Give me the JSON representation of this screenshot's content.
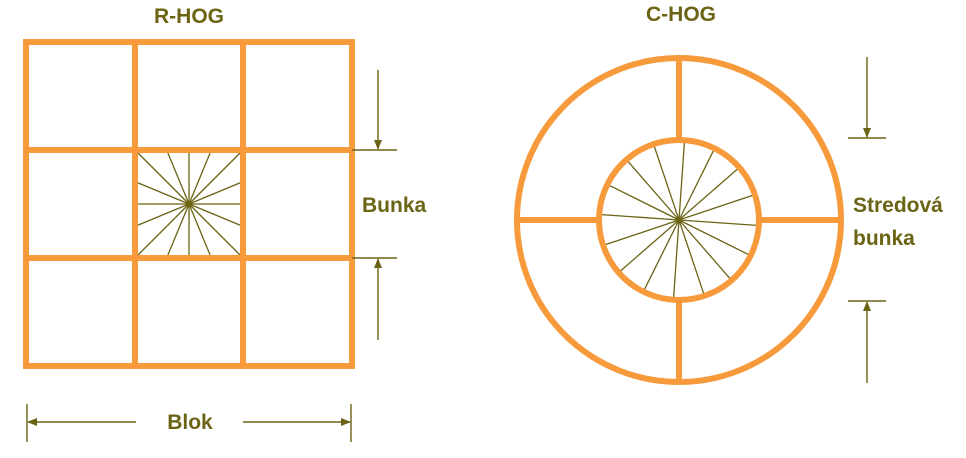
{
  "rhog": {
    "title": "R-HOG",
    "cell_label": "Bunka",
    "block_label": "Blok"
  },
  "chog": {
    "title": "C-HOG",
    "cell_label_line1": "Stredová",
    "cell_label_line2": "bunka"
  },
  "colors": {
    "grid": "#F79A3C",
    "annotation": "#6B6414",
    "rays": "#6B6414",
    "background": "#FFFFFF"
  },
  "rhog_grid": {
    "rows": 3,
    "cols": 3
  },
  "chog_rings": 2,
  "chog_outer_sectors": 4,
  "ray_count": 16
}
